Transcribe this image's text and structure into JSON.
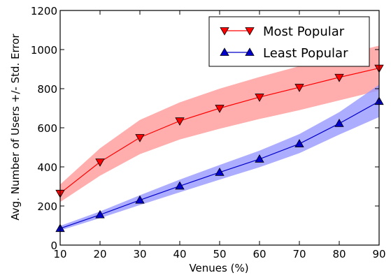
{
  "chart_data": {
    "type": "line",
    "xlabel": "Venues (%)",
    "ylabel": "Avg. Number of Users +/- Std. Error",
    "xlim": [
      10,
      90
    ],
    "ylim": [
      0,
      1200
    ],
    "xticks": [
      10,
      20,
      30,
      40,
      50,
      60,
      70,
      80,
      90
    ],
    "yticks": [
      0,
      200,
      400,
      600,
      800,
      1000,
      1200
    ],
    "grid": false,
    "legend_position": "top-right",
    "x": [
      10,
      20,
      30,
      40,
      50,
      60,
      70,
      80,
      90
    ],
    "series": [
      {
        "name": "Most Popular",
        "marker": "triangle-down",
        "color": "#ff0000",
        "band_color": "#ff9999",
        "values": [
          265,
          425,
          550,
          635,
          700,
          757,
          807,
          858,
          905
        ],
        "lower": [
          220,
          355,
          465,
          540,
          595,
          645,
          690,
          740,
          790
        ],
        "upper": [
          310,
          495,
          640,
          730,
          800,
          860,
          915,
          970,
          1020
        ]
      },
      {
        "name": "Least Popular",
        "marker": "triangle-up",
        "color": "#0000cc",
        "band_color": "#9999ff",
        "values": [
          85,
          155,
          230,
          302,
          372,
          440,
          518,
          622,
          735
        ],
        "lower": [
          75,
          138,
          205,
          270,
          335,
          398,
          470,
          565,
          655
        ],
        "upper": [
          98,
          172,
          255,
          335,
          410,
          483,
          568,
          680,
          820
        ]
      }
    ]
  }
}
